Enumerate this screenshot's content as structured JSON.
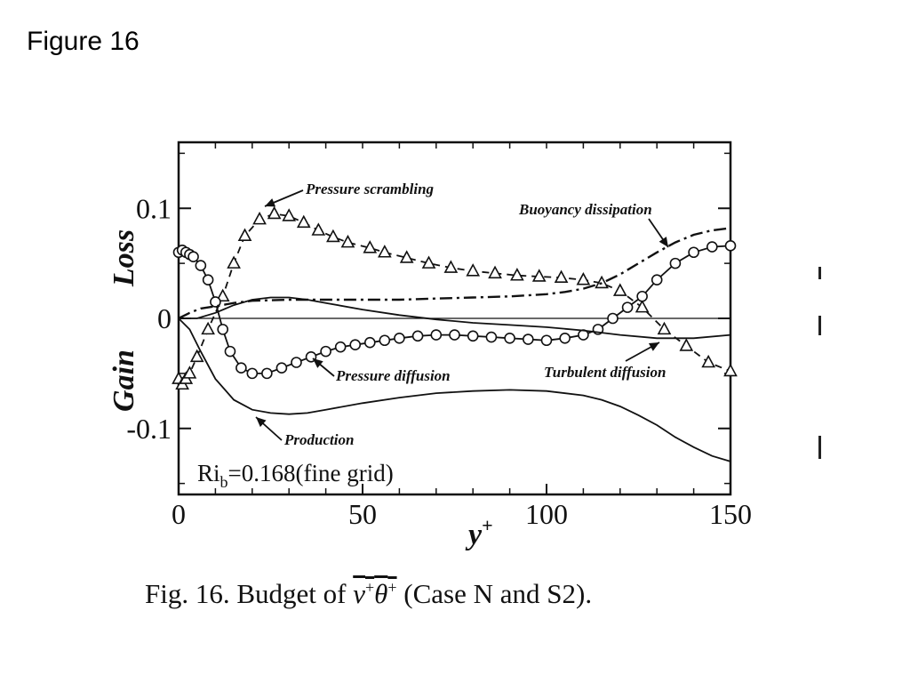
{
  "slide": {
    "title": "Figure 16"
  },
  "caption": {
    "prefix": "Fig.  16. Budget of ",
    "var_v": "v",
    "sup_v": "+",
    "var_theta": "θ",
    "sup_theta": "+",
    "suffix": " (Case N and S2)."
  },
  "chart_data": {
    "type": "line",
    "xlabel": "y",
    "xlabel_sup": "+",
    "ylabel_upper": "Loss",
    "ylabel_lower": "Gain",
    "xlim": [
      0,
      150
    ],
    "ylim": [
      -0.16,
      0.16
    ],
    "xticks": [
      {
        "value": 0,
        "label": "0"
      },
      {
        "value": 50,
        "label": "50"
      },
      {
        "value": 100,
        "label": "100"
      },
      {
        "value": 150,
        "label": "150"
      }
    ],
    "yticks": [
      {
        "value": 0.1,
        "label": "0.1"
      },
      {
        "value": 0,
        "label": "0"
      },
      {
        "value": -0.1,
        "label": "-0.1"
      }
    ],
    "grid": false,
    "annotation_box": {
      "main": "Ri",
      "sub": "b",
      "rest": "=0.168(fine grid)"
    },
    "series": [
      {
        "name": "Pressure scrambling",
        "style": "dashed-triangles",
        "x": [
          0,
          1,
          2,
          3,
          5,
          8,
          12,
          15,
          18,
          22,
          26,
          30,
          34,
          38,
          42,
          46,
          52,
          56,
          62,
          68,
          74,
          80,
          86,
          92,
          98,
          104,
          110,
          115,
          120,
          126,
          132,
          138,
          144,
          150
        ],
        "y": [
          -0.055,
          -0.06,
          -0.055,
          -0.05,
          -0.035,
          -0.01,
          0.02,
          0.05,
          0.075,
          0.09,
          0.095,
          0.093,
          0.087,
          0.08,
          0.074,
          0.069,
          0.064,
          0.06,
          0.055,
          0.05,
          0.046,
          0.043,
          0.041,
          0.039,
          0.038,
          0.037,
          0.035,
          0.032,
          0.025,
          0.01,
          -0.01,
          -0.025,
          -0.04,
          -0.048
        ]
      },
      {
        "name": "Pressure diffusion",
        "style": "solid-circles",
        "x": [
          0,
          1,
          2,
          3,
          4,
          6,
          8,
          10,
          12,
          14,
          17,
          20,
          24,
          28,
          32,
          36,
          40,
          44,
          48,
          52,
          56,
          60,
          65,
          70,
          75,
          80,
          85,
          90,
          95,
          100,
          105,
          110,
          114,
          118,
          122,
          126,
          130,
          135,
          140,
          145,
          150
        ],
        "y": [
          0.06,
          0.062,
          0.06,
          0.058,
          0.056,
          0.048,
          0.035,
          0.015,
          -0.01,
          -0.03,
          -0.045,
          -0.05,
          -0.05,
          -0.045,
          -0.04,
          -0.035,
          -0.03,
          -0.026,
          -0.024,
          -0.022,
          -0.02,
          -0.018,
          -0.016,
          -0.015,
          -0.015,
          -0.016,
          -0.017,
          -0.018,
          -0.019,
          -0.02,
          -0.018,
          -0.015,
          -0.01,
          0.0,
          0.01,
          0.02,
          0.035,
          0.05,
          0.06,
          0.065,
          0.066
        ]
      },
      {
        "name": "Buoyancy dissipation",
        "style": "dash-dot",
        "x": [
          0,
          3,
          6,
          10,
          15,
          20,
          30,
          40,
          50,
          60,
          70,
          80,
          90,
          100,
          105,
          110,
          115,
          120,
          125,
          130,
          135,
          140,
          145,
          150
        ],
        "y": [
          0.0,
          0.005,
          0.009,
          0.011,
          0.014,
          0.016,
          0.017,
          0.017,
          0.017,
          0.017,
          0.018,
          0.019,
          0.02,
          0.022,
          0.024,
          0.027,
          0.032,
          0.04,
          0.05,
          0.06,
          0.069,
          0.076,
          0.08,
          0.082
        ]
      },
      {
        "name": "Turbulent diffusion",
        "style": "solid",
        "x": [
          0,
          5,
          10,
          15,
          20,
          25,
          30,
          35,
          40,
          50,
          60,
          70,
          80,
          90,
          100,
          110,
          120,
          130,
          140,
          150
        ],
        "y": [
          0.0,
          0.0,
          0.005,
          0.012,
          0.017,
          0.019,
          0.019,
          0.017,
          0.014,
          0.008,
          0.003,
          -0.001,
          -0.004,
          -0.006,
          -0.008,
          -0.011,
          -0.015,
          -0.018,
          -0.018,
          -0.015
        ]
      },
      {
        "name": "Production",
        "style": "solid",
        "x": [
          0,
          3,
          6,
          10,
          15,
          20,
          25,
          30,
          35,
          40,
          50,
          60,
          70,
          80,
          90,
          100,
          110,
          115,
          120,
          125,
          130,
          135,
          140,
          145,
          150
        ],
        "y": [
          0.0,
          -0.01,
          -0.03,
          -0.055,
          -0.074,
          -0.083,
          -0.086,
          -0.087,
          -0.086,
          -0.083,
          -0.077,
          -0.072,
          -0.068,
          -0.066,
          -0.065,
          -0.066,
          -0.07,
          -0.074,
          -0.08,
          -0.088,
          -0.097,
          -0.108,
          -0.117,
          -0.125,
          -0.13
        ]
      }
    ],
    "annotations": [
      {
        "text": "Pressure scrambling",
        "series": "Pressure scrambling"
      },
      {
        "text": "Buoyancy dissipation",
        "series": "Buoyancy dissipation"
      },
      {
        "text": "Pressure diffusion",
        "series": "Pressure diffusion"
      },
      {
        "text": "Turbulent diffusion",
        "series": "Turbulent diffusion"
      },
      {
        "text": "Production",
        "series": "Production"
      }
    ]
  }
}
